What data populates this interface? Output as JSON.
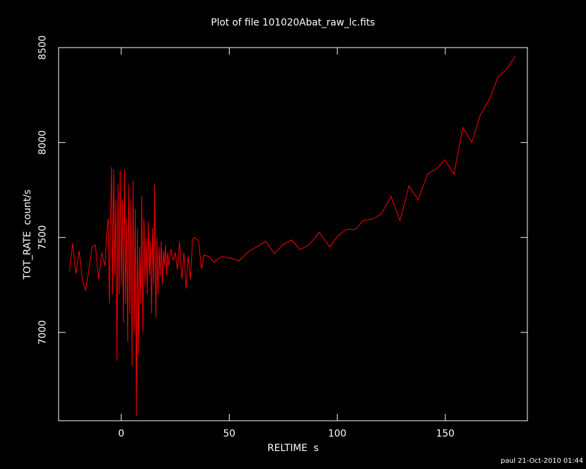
{
  "chart_data": {
    "type": "line",
    "title": "Plot of file 101020Abat_raw_lc.fits",
    "x_label": "RELTIME  s",
    "y_label": "TOT_RATE  count/s",
    "footer": "paul 21-Oct-2010 01:44",
    "xlim": [
      -29,
      188
    ],
    "ylim": [
      6535,
      8500
    ],
    "xticks": [
      0,
      50,
      100,
      150
    ],
    "yticks": [
      7000,
      7500,
      8000,
      8500
    ],
    "series": [
      {
        "color": "#ff0000",
        "x": [
          -24,
          -22.5,
          -21,
          -19.5,
          -18,
          -16.5,
          -15,
          -13.5,
          -12,
          -10.5,
          -9,
          -7.5,
          -6.5,
          -6,
          -5.5,
          -5,
          -4.5,
          -4,
          -3.5,
          -3,
          -2.5,
          -2,
          -1.5,
          -1,
          -0.5,
          0,
          0.5,
          1,
          1.5,
          2,
          2.5,
          3,
          3.5,
          4,
          4.5,
          5,
          5.5,
          6,
          6.5,
          7,
          7.5,
          8,
          8.5,
          9,
          9.5,
          10,
          10.5,
          11,
          11.5,
          12,
          12.5,
          13,
          13.5,
          14,
          14.5,
          15,
          15.5,
          16,
          16.5,
          17,
          17.5,
          18,
          18.5,
          19,
          19.5,
          20,
          20.5,
          21,
          21.5,
          22,
          23,
          24,
          25,
          26,
          27,
          28,
          29,
          30,
          31,
          32,
          33,
          34,
          35.8,
          37.1,
          38.3,
          40.6,
          42.8,
          46.6,
          50.8,
          54.6,
          58.8,
          62.6,
          66.8,
          70.9,
          74.8,
          78.9,
          82.7,
          87,
          91.7,
          96.5,
          100.3,
          104.2,
          108.3,
          112.1,
          116.3,
          120.4,
          124.9,
          129,
          133.2,
          137.4,
          141.9,
          146,
          149.8,
          154,
          158.1,
          162.3,
          166.1,
          170.6,
          174.4,
          178.6,
          182.4
        ],
        "values": [
          7320,
          7470,
          7310,
          7430,
          7280,
          7220,
          7330,
          7450,
          7460,
          7280,
          7420,
          7350,
          7560,
          7600,
          7150,
          7550,
          7870,
          7200,
          7860,
          7300,
          7700,
          6850,
          7780,
          7200,
          7850,
          7250,
          7700,
          7050,
          7860,
          7150,
          7600,
          6950,
          7780,
          7100,
          7700,
          6820,
          7800,
          7000,
          7650,
          6560,
          7550,
          6880,
          7450,
          7150,
          7720,
          7000,
          7600,
          7250,
          7500,
          7200,
          7580,
          7300,
          7480,
          7100,
          7550,
          7250,
          7780,
          7080,
          7500,
          7200,
          7450,
          7300,
          7480,
          7250,
          7430,
          7350,
          7460,
          7300,
          7420,
          7350,
          7440,
          7380,
          7420,
          7330,
          7480,
          7280,
          7420,
          7230,
          7400,
          7280,
          7490,
          7500,
          7480,
          7335,
          7407,
          7400,
          7370,
          7400,
          7390,
          7378,
          7425,
          7450,
          7480,
          7415,
          7462,
          7487,
          7436,
          7462,
          7527,
          7450,
          7509,
          7542,
          7542,
          7589,
          7596,
          7625,
          7716,
          7589,
          7771,
          7698,
          7836,
          7862,
          7909,
          7833,
          8080,
          8000,
          8142,
          8233,
          8345,
          8389,
          8455
        ]
      }
    ]
  }
}
